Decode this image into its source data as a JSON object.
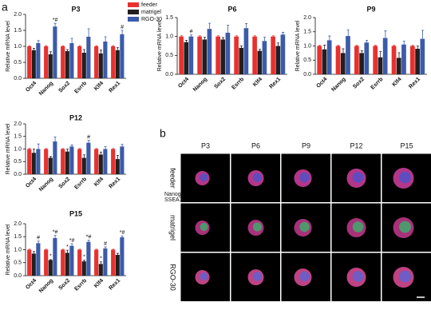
{
  "panel_labels": [
    "a",
    "b"
  ],
  "image_grid": {
    "columns": [
      "P3",
      "P6",
      "P9",
      "P12",
      "P15"
    ],
    "rows": [
      "feeder",
      "matrigel",
      "RGO-30"
    ],
    "stains": [
      "Nanog",
      "SSEA1"
    ]
  },
  "chart_data": [
    {
      "type": "bar",
      "title": "P3",
      "y_label": "Relative mRNA level",
      "legend": true,
      "categories": [
        "Oct4",
        "Nanog",
        "Sox2",
        "Esrrb",
        "Klf4",
        "Rex1"
      ],
      "ylim": [
        0,
        2
      ],
      "yticks": [
        {
          "value": 0,
          "label": "0.0"
        },
        {
          "value": 0.5,
          "label": "0.5"
        },
        {
          "value": 1,
          "label": "1.0"
        },
        {
          "value": 1.5,
          "label": "1.5"
        },
        {
          "value": 2,
          "label": "2.0"
        }
      ],
      "series": [
        {
          "name": "feeder",
          "color": "#e8312f",
          "values": [
            1,
            1,
            1,
            1,
            1,
            1
          ],
          "errors": [
            0.02,
            0.02,
            0.02,
            0.02,
            0.02,
            0.02
          ]
        },
        {
          "name": "matrigel",
          "color": "#231f20",
          "values": [
            0.88,
            0.75,
            0.85,
            0.8,
            0.78,
            0.88
          ],
          "errors": [
            0.06,
            0.08,
            0.05,
            0.1,
            0.1,
            0.08
          ]
        },
        {
          "name": "RGO-30",
          "color": "#3b5bab",
          "values": [
            1.1,
            1.62,
            1.1,
            1.3,
            1.15,
            1.38
          ],
          "errors": [
            0.08,
            0.1,
            0.15,
            0.25,
            0.15,
            0.12
          ],
          "markers": [
            null,
            "*#",
            null,
            null,
            null,
            "#"
          ]
        }
      ]
    },
    {
      "type": "bar",
      "title": "P6",
      "y_label": "Relative mRNA level",
      "categories": [
        "Oct4",
        "Nanog",
        "Sox2",
        "Esrrb",
        "Klf4",
        "Rex1"
      ],
      "ylim": [
        0,
        1.5
      ],
      "yticks": [
        {
          "value": 0,
          "label": "0.0"
        },
        {
          "value": 0.5,
          "label": "0.5"
        },
        {
          "value": 1,
          "label": "1.0"
        },
        {
          "value": 1.5,
          "label": "1.5"
        }
      ],
      "series": [
        {
          "name": "feeder",
          "color": "#e8312f",
          "values": [
            1,
            1,
            1,
            1,
            1,
            1
          ],
          "errors": [
            0.02,
            0.02,
            0.02,
            0.02,
            0.02,
            0.02
          ]
        },
        {
          "name": "matrigel",
          "color": "#231f20",
          "values": [
            0.85,
            0.92,
            0.92,
            0.7,
            0.62,
            0.75
          ],
          "errors": [
            0.05,
            0.06,
            0.05,
            0.05,
            0.04,
            0.08
          ]
        },
        {
          "name": "RGO-30",
          "color": "#3b5bab",
          "values": [
            1,
            1.2,
            1.1,
            1.22,
            0.88,
            1.05
          ],
          "errors": [
            0.04,
            0.15,
            0.2,
            0.12,
            0.1,
            0.06
          ],
          "markers": [
            "#",
            null,
            null,
            null,
            null,
            null
          ]
        }
      ]
    },
    {
      "type": "bar",
      "title": "P9",
      "y_label": "Relative mRNA level",
      "categories": [
        "Oct4",
        "Nanog",
        "Sox2",
        "Esrrb",
        "Klf4",
        "Rex1"
      ],
      "ylim": [
        0,
        2
      ],
      "yticks": [
        {
          "value": 0,
          "label": "0.0"
        },
        {
          "value": 0.5,
          "label": "0.5"
        },
        {
          "value": 1,
          "label": "1.0"
        },
        {
          "value": 1.5,
          "label": "1.5"
        },
        {
          "value": 2,
          "label": "2.0"
        }
      ],
      "series": [
        {
          "name": "feeder",
          "color": "#e8312f",
          "values": [
            1,
            1,
            1,
            1,
            1,
            1
          ],
          "errors": [
            0.02,
            0.02,
            0.02,
            0.02,
            0.02,
            0.02
          ]
        },
        {
          "name": "matrigel",
          "color": "#231f20",
          "values": [
            0.88,
            0.75,
            0.75,
            0.6,
            0.58,
            0.9
          ],
          "errors": [
            0.15,
            0.15,
            0.08,
            0.2,
            0.18,
            0.1
          ]
        },
        {
          "name": "RGO-30",
          "color": "#3b5bab",
          "values": [
            1.2,
            1.35,
            1.12,
            1.28,
            1.05,
            1.25
          ],
          "errors": [
            0.15,
            0.22,
            0.08,
            0.25,
            0.12,
            0.3
          ]
        }
      ]
    },
    {
      "type": "bar",
      "title": "P12",
      "y_label": "Relative mRNA level",
      "categories": [
        "Oct4",
        "Nanog",
        "Sox2",
        "Esrrb",
        "Klf4",
        "Rex1"
      ],
      "ylim": [
        0,
        2
      ],
      "yticks": [
        {
          "value": 0,
          "label": "0.0"
        },
        {
          "value": 0.5,
          "label": "0.5"
        },
        {
          "value": 1,
          "label": "1.0"
        },
        {
          "value": 1.5,
          "label": "1.5"
        },
        {
          "value": 2,
          "label": "2.0"
        }
      ],
      "series": [
        {
          "name": "feeder",
          "color": "#e8312f",
          "values": [
            1,
            1,
            1,
            1,
            1,
            1
          ],
          "errors": [
            0.02,
            0.02,
            0.02,
            0.02,
            0.02,
            0.02
          ]
        },
        {
          "name": "matrigel",
          "color": "#231f20",
          "values": [
            0.85,
            0.65,
            0.9,
            0.65,
            0.78,
            0.6
          ],
          "errors": [
            0.15,
            0.05,
            0.1,
            0.12,
            0.1,
            0.15
          ]
        },
        {
          "name": "RGO-30",
          "color": "#3b5bab",
          "values": [
            1,
            1.3,
            1.1,
            1.25,
            1,
            1.1
          ],
          "errors": [
            0.2,
            0.18,
            0.06,
            0.1,
            0.1,
            0.08
          ],
          "markers": [
            null,
            null,
            null,
            "#",
            null,
            null
          ]
        }
      ]
    },
    {
      "type": "bar",
      "title": "P15",
      "y_label": "Relative mRNA level",
      "categories": [
        "Oct4",
        "Nanog",
        "Sox2",
        "Esrrb",
        "Klf4",
        "Rex1"
      ],
      "ylim": [
        0,
        2
      ],
      "yticks": [
        {
          "value": 0,
          "label": "0.0"
        },
        {
          "value": 0.5,
          "label": "0.5"
        },
        {
          "value": 1,
          "label": "1.0"
        },
        {
          "value": 1.5,
          "label": "1.5"
        },
        {
          "value": 2,
          "label": "2.0"
        }
      ],
      "series": [
        {
          "name": "feeder",
          "color": "#e8312f",
          "values": [
            1,
            1,
            1,
            1,
            1,
            1
          ],
          "errors": [
            0.02,
            0.02,
            0.02,
            0.02,
            0.02,
            0.02
          ]
        },
        {
          "name": "matrigel",
          "color": "#231f20",
          "values": [
            0.85,
            0.6,
            0.88,
            0.55,
            0.45,
            0.8
          ],
          "errors": [
            0.08,
            0.02,
            0.1,
            0.04,
            0.08,
            0.06
          ],
          "markers": [
            null,
            "*",
            "*",
            "*",
            "*",
            null
          ]
        },
        {
          "name": "RGO-30",
          "color": "#3b5bab",
          "values": [
            1.25,
            1.45,
            1.15,
            1.3,
            1.05,
            1.48
          ],
          "errors": [
            0.08,
            0.1,
            0.08,
            0.06,
            0.06,
            0.05
          ],
          "markers": [
            "#",
            "*#",
            "*#",
            "*#",
            "#",
            "*#"
          ]
        }
      ]
    }
  ]
}
